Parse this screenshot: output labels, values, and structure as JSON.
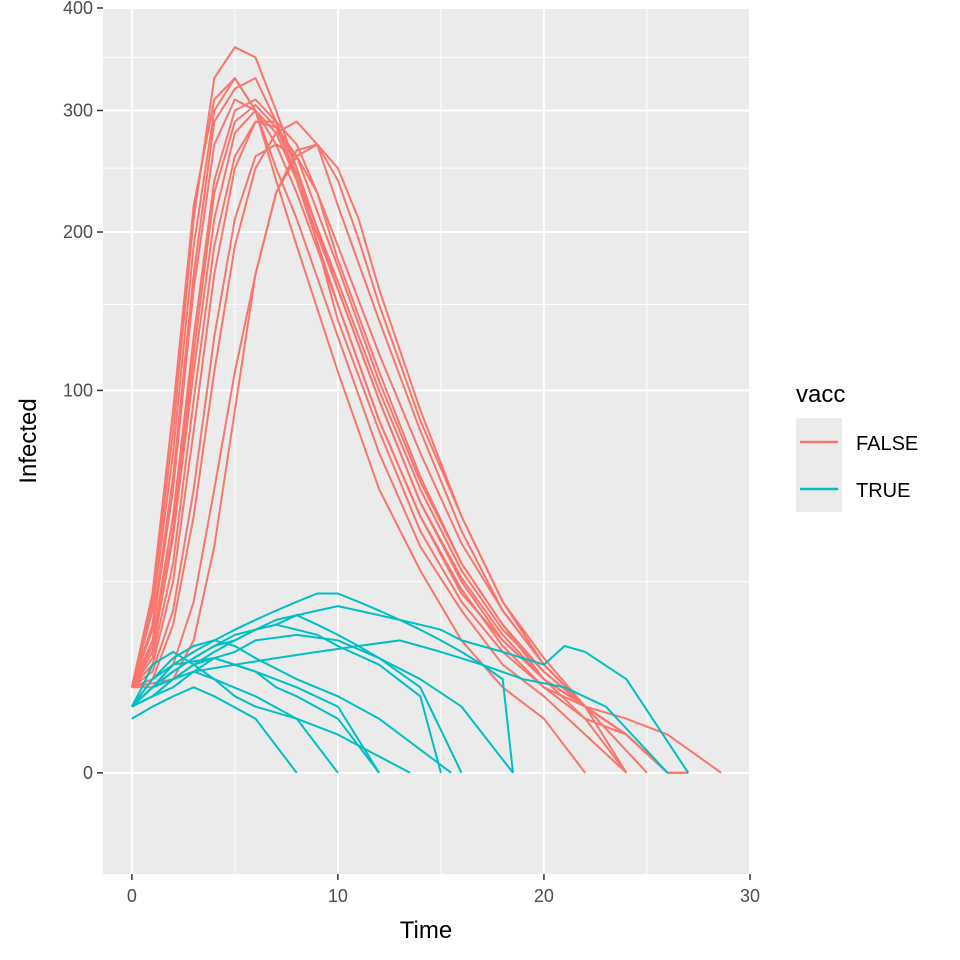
{
  "chart_data": {
    "type": "line",
    "xlabel": "Time",
    "ylabel": "Infected",
    "xlim": [
      -1.4,
      30
    ],
    "ylim": [
      -7,
      400
    ],
    "y_scale": "sqrt",
    "x_ticks": [
      0,
      10,
      20,
      30
    ],
    "x_tick_labels": [
      "0",
      "10",
      "20",
      "30"
    ],
    "y_ticks": [
      0,
      100,
      200,
      300,
      400
    ],
    "y_tick_labels": [
      "0",
      "100",
      "200",
      "300",
      "400"
    ],
    "y_minor_ticks": [
      25,
      150,
      250,
      350
    ],
    "grid": true,
    "legend": {
      "title": "vacc",
      "position": "right",
      "entries": [
        {
          "label": "FALSE",
          "color": "#F8766D"
        },
        {
          "label": "TRUE",
          "color": "#00BFC4"
        }
      ]
    },
    "series": [
      {
        "name": "FALSE",
        "color": "#F8766D",
        "runs": [
          {
            "x": [
              0,
              1,
              2,
              3,
              4,
              5,
              6,
              7,
              8,
              10,
              12,
              14,
              16,
              18,
              20,
              22,
              24,
              26,
              28.6
            ],
            "y": [
              5,
              20,
              80,
              210,
              330,
              360,
              350,
              300,
              250,
              140,
              80,
              40,
              20,
              10,
              5,
              3,
              2,
              1,
              0
            ]
          },
          {
            "x": [
              0,
              1,
              2,
              3,
              4,
              5,
              6,
              7,
              8,
              10,
              12,
              14,
              16,
              18,
              20,
              22,
              24,
              26
            ],
            "y": [
              5,
              15,
              60,
              170,
              290,
              320,
              330,
              290,
              240,
              150,
              85,
              45,
              22,
              12,
              6,
              3,
              1,
              0
            ]
          },
          {
            "x": [
              0,
              1,
              2,
              3,
              4,
              5,
              6,
              7,
              8,
              10,
              12,
              14,
              16,
              18,
              20,
              22,
              24
            ],
            "y": [
              5,
              12,
              45,
              130,
              240,
              300,
              310,
              290,
              250,
              160,
              95,
              50,
              25,
              12,
              6,
              2,
              0
            ]
          },
          {
            "x": [
              0,
              1,
              2,
              3,
              4,
              5,
              6,
              7,
              8,
              9,
              10,
              12,
              14,
              16,
              18,
              20,
              22,
              25
            ],
            "y": [
              5,
              8,
              25,
              80,
              170,
              250,
              290,
              290,
              270,
              230,
              180,
              110,
              60,
              30,
              15,
              6,
              3,
              0
            ]
          },
          {
            "x": [
              0,
              1,
              2,
              3,
              4,
              5,
              6,
              7,
              8,
              9,
              10,
              12,
              14,
              16,
              18,
              20,
              22,
              24,
              26
            ],
            "y": [
              5,
              6,
              15,
              45,
              110,
              190,
              250,
              280,
              290,
              270,
              220,
              140,
              80,
              40,
              18,
              8,
              3,
              1,
              0
            ]
          },
          {
            "x": [
              0,
              1,
              2,
              3,
              4,
              5,
              6,
              7,
              8,
              9,
              10,
              11,
              12,
              14,
              16,
              18,
              20,
              22,
              24,
              26
            ],
            "y": [
              5,
              5,
              8,
              20,
              55,
              110,
              170,
              230,
              260,
              270,
              250,
              210,
              160,
              90,
              45,
              20,
              8,
              3,
              1,
              0
            ]
          },
          {
            "x": [
              0,
              1,
              2,
              3,
              4,
              5,
              6,
              7,
              8,
              10,
              12,
              14,
              16,
              18,
              20,
              22,
              24
            ],
            "y": [
              5,
              18,
              70,
              190,
              300,
              330,
              300,
              250,
              210,
              130,
              70,
              35,
              18,
              8,
              4,
              1,
              0
            ]
          },
          {
            "x": [
              0,
              1,
              2,
              3,
              4,
              5,
              6,
              7,
              8,
              10,
              12,
              14,
              16,
              18,
              20,
              22
            ],
            "y": [
              5,
              22,
              90,
              220,
              310,
              330,
              300,
              240,
              190,
              110,
              55,
              28,
              12,
              5,
              2,
              0
            ]
          },
          {
            "x": [
              0,
              1,
              2,
              3,
              4,
              5,
              6,
              7,
              8,
              10,
              12,
              14,
              16,
              18,
              20,
              22,
              24,
              26
            ],
            "y": [
              5,
              10,
              38,
              110,
              210,
              280,
              300,
              280,
              240,
              160,
              95,
              50,
              26,
              13,
              6,
              3,
              1,
              0
            ]
          },
          {
            "x": [
              0,
              1,
              2,
              3,
              4,
              5,
              6,
              7,
              8,
              9,
              10,
              12,
              14,
              16,
              18,
              20,
              22,
              24,
              26,
              27
            ],
            "y": [
              5,
              7,
              18,
              55,
              130,
              210,
              260,
              270,
              260,
              230,
              190,
              120,
              70,
              36,
              18,
              8,
              3,
              1,
              0,
              0
            ]
          },
          {
            "x": [
              0,
              2,
              3,
              4,
              5,
              6,
              7,
              8,
              9,
              10,
              11,
              12,
              14,
              16,
              18,
              20,
              22,
              24
            ],
            "y": [
              5,
              6,
              12,
              35,
              90,
              170,
              230,
              265,
              270,
              240,
              195,
              150,
              85,
              45,
              20,
              9,
              3,
              0
            ]
          },
          {
            "x": [
              0,
              1,
              2,
              3,
              4,
              5,
              6,
              7,
              8,
              10,
              12,
              14,
              16,
              18,
              20,
              22,
              24,
              26
            ],
            "y": [
              5,
              14,
              55,
              160,
              270,
              310,
              300,
              270,
              230,
              150,
              85,
              45,
              23,
              11,
              5,
              2,
              1,
              0
            ]
          },
          {
            "x": [
              0,
              1,
              2,
              3,
              4,
              5,
              6,
              7,
              8,
              10,
              12,
              14,
              16,
              18,
              20,
              22,
              24,
              26
            ],
            "y": [
              5,
              11,
              40,
              120,
              230,
              290,
              305,
              285,
              245,
              165,
              100,
              55,
              28,
              14,
              7,
              3,
              1,
              0
            ]
          },
          {
            "x": [
              0,
              1,
              2,
              3,
              4,
              5,
              6,
              7,
              8,
              10,
              12,
              14,
              16,
              18,
              20,
              22,
              24,
              26,
              27
            ],
            "y": [
              5,
              9,
              30,
              95,
              190,
              260,
              290,
              285,
              260,
              175,
              105,
              58,
              30,
              15,
              7,
              3,
              1,
              0,
              0
            ]
          }
        ]
      },
      {
        "name": "TRUE",
        "color": "#00BFC4",
        "runs": [
          {
            "x": [
              0,
              0.5,
              1,
              2,
              3,
              4,
              5,
              6,
              8,
              10,
              13.5
            ],
            "y": [
              3,
              5,
              8,
              10,
              8,
              6,
              4,
              3,
              2,
              1,
              0
            ]
          },
          {
            "x": [
              0,
              1,
              2,
              3,
              4,
              5,
              6,
              7,
              8,
              9,
              10,
              11,
              12,
              13,
              14,
              15,
              16,
              17,
              18,
              18.5
            ],
            "y": [
              3,
              5,
              8,
              10,
              12,
              14,
              16,
              18,
              20,
              22,
              22,
              20,
              18,
              16,
              14,
              12,
              10,
              8,
              6,
              0
            ]
          },
          {
            "x": [
              0,
              1,
              2,
              3,
              4,
              5,
              6,
              7,
              8,
              9,
              10,
              11,
              12,
              13,
              14,
              15,
              16,
              18,
              20,
              21,
              22,
              24,
              27
            ],
            "y": [
              3,
              4,
              6,
              8,
              10,
              12,
              14,
              15,
              17,
              18,
              19,
              18,
              17,
              16,
              15,
              14,
              12,
              10,
              8,
              11,
              10,
              6,
              0
            ]
          },
          {
            "x": [
              0,
              1,
              2,
              3,
              4,
              5,
              6,
              8,
              10,
              12,
              15.5
            ],
            "y": [
              3,
              6,
              9,
              11,
              12,
              11,
              9,
              6,
              4,
              2,
              0
            ]
          },
          {
            "x": [
              0,
              1,
              2,
              3,
              4,
              5,
              6,
              7,
              8,
              9,
              10,
              11,
              12,
              14,
              16,
              18.5
            ],
            "y": [
              3,
              5,
              7,
              9,
              11,
              13,
              14,
              16,
              17,
              15,
              13,
              11,
              9,
              6,
              3,
              0
            ]
          },
          {
            "x": [
              0,
              1,
              2,
              3,
              4,
              5,
              6,
              7,
              8,
              10,
              12
            ],
            "y": [
              3,
              4,
              6,
              8,
              9,
              8,
              7,
              5,
              4,
              2,
              0
            ]
          },
          {
            "x": [
              0,
              1,
              2,
              3,
              4,
              5,
              6,
              7,
              8,
              9,
              10,
              12,
              14,
              15
            ],
            "y": [
              3,
              5,
              7,
              9,
              11,
              12,
              14,
              15,
              14,
              13,
              11,
              8,
              4,
              0
            ]
          },
          {
            "x": [
              0,
              1,
              2,
              3,
              4,
              6,
              8,
              10
            ],
            "y": [
              3,
              5,
              6,
              7,
              6,
              4,
              2,
              0
            ]
          },
          {
            "x": [
              0,
              1,
              2,
              3,
              4,
              5,
              6,
              8,
              10,
              12,
              14,
              16
            ],
            "y": [
              3,
              4,
              5,
              7,
              9,
              10,
              12,
              13,
              12,
              9,
              5,
              0
            ]
          },
          {
            "x": [
              0,
              1,
              2,
              4,
              6,
              8,
              10,
              12
            ],
            "y": [
              3,
              6,
              8,
              9,
              7,
              5,
              3,
              0
            ]
          },
          {
            "x": [
              0,
              1,
              2,
              3,
              4,
              6,
              8
            ],
            "y": [
              2,
              3,
              4,
              5,
              4,
              2,
              0
            ]
          },
          {
            "x": [
              0,
              1,
              2,
              3,
              5,
              7,
              9,
              11,
              13,
              15,
              17,
              19,
              21,
              23,
              26
            ],
            "y": [
              3,
              5,
              6,
              7,
              8,
              9,
              10,
              11,
              12,
              10,
              8,
              6,
              5,
              3,
              0
            ]
          }
        ]
      }
    ]
  }
}
